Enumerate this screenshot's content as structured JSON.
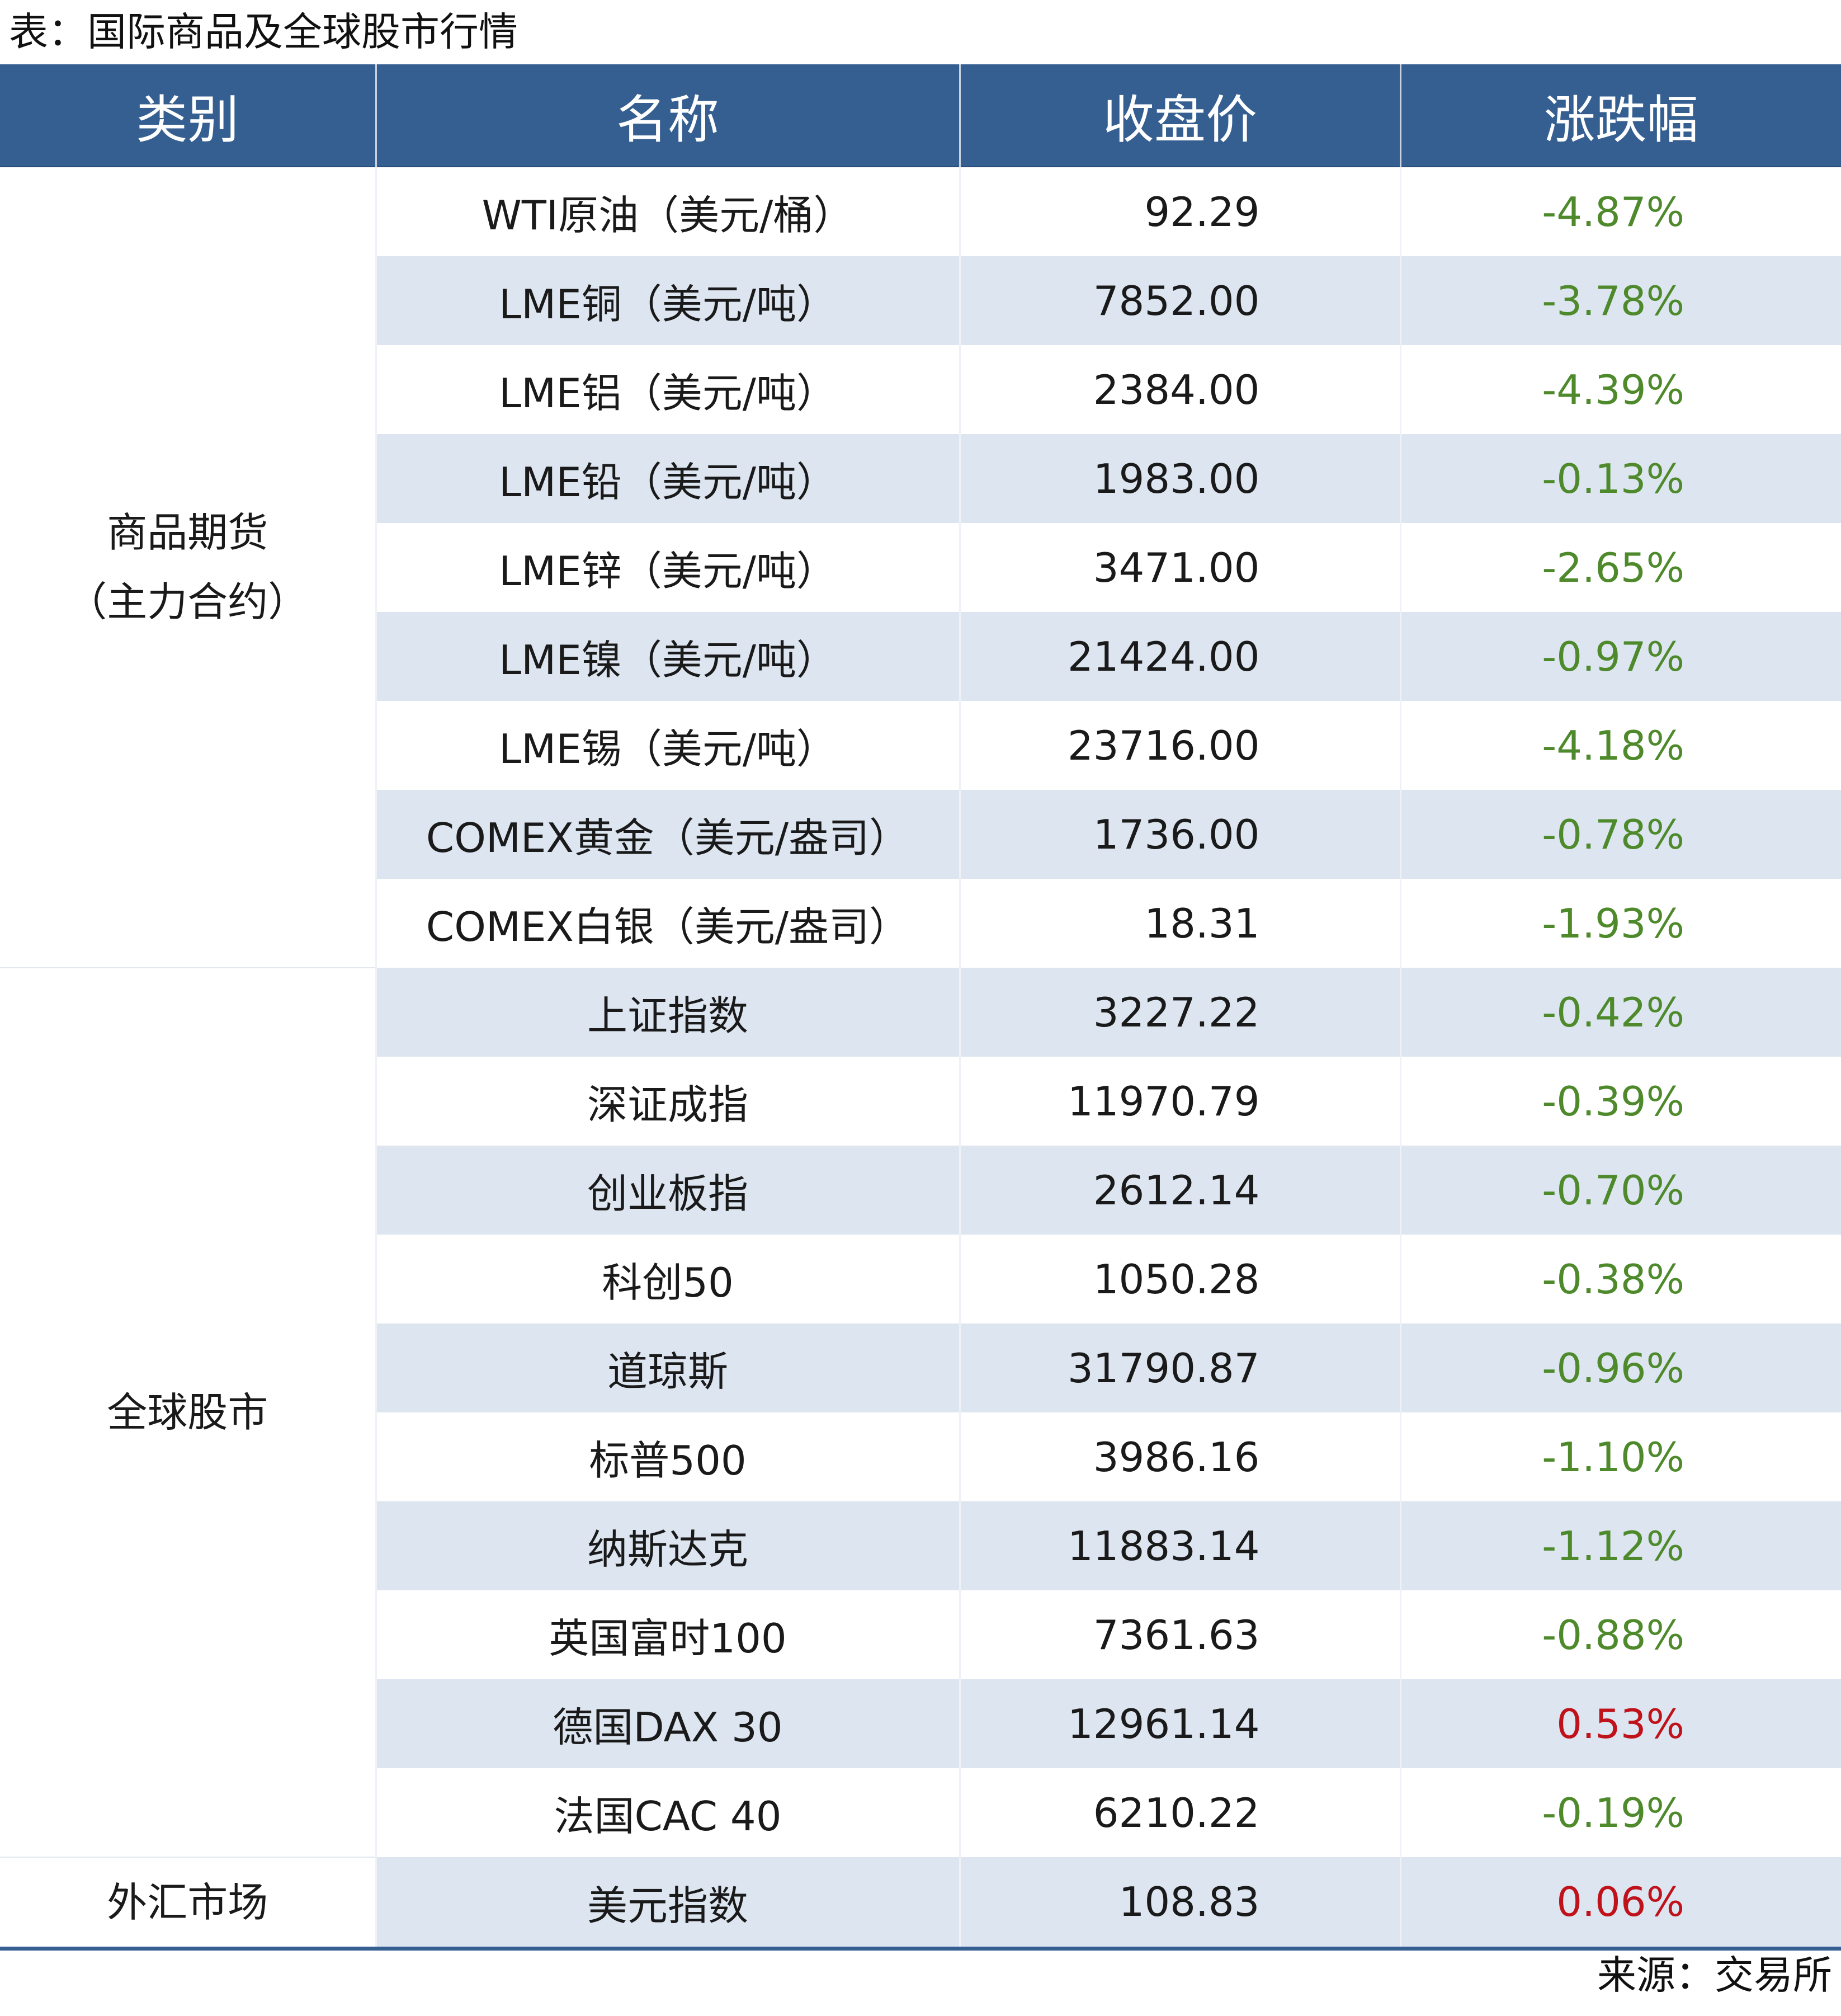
{
  "title": "表：国际商品及全球股市行情",
  "source": "来源：交易所",
  "colors": {
    "header_bg": "#355f91",
    "alt_row_bg": "#dce5f0",
    "down": "#4e8a2b",
    "up": "#c0121a"
  },
  "headers": [
    "类别",
    "名称",
    "收盘价",
    "涨跌幅"
  ],
  "groups": [
    {
      "category_lines": [
        "商品期货",
        "（主力合约）"
      ],
      "rows": [
        {
          "name": "WTI原油（美元/桶）",
          "price": "92.29",
          "change": "-4.87%",
          "dir": "down"
        },
        {
          "name": "LME铜（美元/吨）",
          "price": "7852.00",
          "change": "-3.78%",
          "dir": "down"
        },
        {
          "name": "LME铝（美元/吨）",
          "price": "2384.00",
          "change": "-4.39%",
          "dir": "down"
        },
        {
          "name": "LME铅（美元/吨）",
          "price": "1983.00",
          "change": "-0.13%",
          "dir": "down"
        },
        {
          "name": "LME锌（美元/吨）",
          "price": "3471.00",
          "change": "-2.65%",
          "dir": "down"
        },
        {
          "name": "LME镍（美元/吨）",
          "price": "21424.00",
          "change": "-0.97%",
          "dir": "down"
        },
        {
          "name": "LME锡（美元/吨）",
          "price": "23716.00",
          "change": "-4.18%",
          "dir": "down"
        },
        {
          "name": "COMEX黄金（美元/盎司）",
          "price": "1736.00",
          "change": "-0.78%",
          "dir": "down"
        },
        {
          "name": "COMEX白银（美元/盎司）",
          "price": "18.31",
          "change": "-1.93%",
          "dir": "down"
        }
      ]
    },
    {
      "category_lines": [
        "全球股市"
      ],
      "rows": [
        {
          "name": "上证指数",
          "price": "3227.22",
          "change": "-0.42%",
          "dir": "down"
        },
        {
          "name": "深证成指",
          "price": "11970.79",
          "change": "-0.39%",
          "dir": "down"
        },
        {
          "name": "创业板指",
          "price": "2612.14",
          "change": "-0.70%",
          "dir": "down"
        },
        {
          "name": "科创50",
          "price": "1050.28",
          "change": "-0.38%",
          "dir": "down"
        },
        {
          "name": "道琼斯",
          "price": "31790.87",
          "change": "-0.96%",
          "dir": "down"
        },
        {
          "name": "标普500",
          "price": "3986.16",
          "change": "-1.10%",
          "dir": "down"
        },
        {
          "name": "纳斯达克",
          "price": "11883.14",
          "change": "-1.12%",
          "dir": "down"
        },
        {
          "name": "英国富时100",
          "price": "7361.63",
          "change": "-0.88%",
          "dir": "down"
        },
        {
          "name": "德国DAX 30",
          "price": "12961.14",
          "change": "0.53%",
          "dir": "up"
        },
        {
          "name": "法国CAC 40",
          "price": "6210.22",
          "change": "-0.19%",
          "dir": "down"
        }
      ]
    },
    {
      "category_lines": [
        "外汇市场"
      ],
      "rows": [
        {
          "name": "美元指数",
          "price": "108.83",
          "change": "0.06%",
          "dir": "up"
        }
      ]
    }
  ]
}
